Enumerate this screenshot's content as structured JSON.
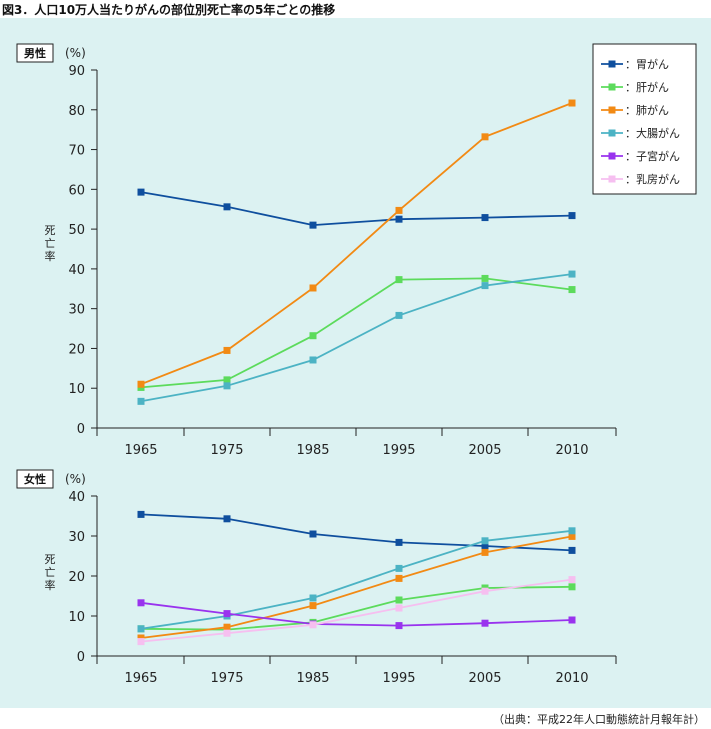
{
  "title": "図3．人口10万人当たりがんの部位別死亡率の5年ごとの推移",
  "source": "（出典：平成22年人口動態統計月報年計）",
  "legend": [
    {
      "name": "胃がん",
      "label": "：胃がん",
      "color": "#0f4f9e"
    },
    {
      "name": "肝がん",
      "label": "：肝がん",
      "color": "#5cdb5c"
    },
    {
      "name": "肺がん",
      "label": "：肺がん",
      "color": "#f28a14"
    },
    {
      "name": "大腸がん",
      "label": "：大腸がん",
      "color": "#4cb3c4"
    },
    {
      "name": "子宮がん",
      "label": "：子宮がん",
      "color": "#9933ee"
    },
    {
      "name": "乳房がん",
      "label": "：乳房がん",
      "color": "#f6bff0"
    }
  ],
  "chart_data": [
    {
      "type": "line",
      "panel_label": "男性",
      "unit": "(%)",
      "ylabel": "死亡率",
      "categories": [
        "1965",
        "1975",
        "1985",
        "1995",
        "2005",
        "2010"
      ],
      "ylim": [
        0,
        90
      ],
      "yticks": [
        0,
        10,
        20,
        30,
        40,
        50,
        60,
        70,
        80,
        90
      ],
      "grid": false,
      "legend_position": "top-right",
      "series": [
        {
          "name": "胃がん",
          "color": "#0f4f9e",
          "values": [
            59.3,
            55.6,
            51.0,
            52.5,
            52.9,
            53.4
          ]
        },
        {
          "name": "肝がん",
          "color": "#5cdb5c",
          "values": [
            10.2,
            12.1,
            23.2,
            37.3,
            37.6,
            34.8
          ]
        },
        {
          "name": "肺がん",
          "color": "#f28a14",
          "values": [
            11.0,
            19.5,
            35.2,
            54.7,
            73.2,
            81.7
          ]
        },
        {
          "name": "大腸がん",
          "color": "#4cb3c4",
          "values": [
            6.7,
            10.6,
            17.1,
            28.3,
            35.8,
            38.7
          ]
        }
      ]
    },
    {
      "type": "line",
      "panel_label": "女性",
      "unit": "(%)",
      "ylabel": "死亡率",
      "categories": [
        "1965",
        "1975",
        "1985",
        "1995",
        "2005",
        "2010"
      ],
      "ylim": [
        0,
        40
      ],
      "yticks": [
        0,
        10,
        20,
        30,
        40
      ],
      "grid": false,
      "series": [
        {
          "name": "胃がん",
          "color": "#0f4f9e",
          "values": [
            35.4,
            34.3,
            30.5,
            28.4,
            27.5,
            26.4
          ]
        },
        {
          "name": "肝がん",
          "color": "#5cdb5c",
          "values": [
            6.8,
            6.6,
            8.4,
            14.0,
            17.0,
            17.3
          ]
        },
        {
          "name": "肺がん",
          "color": "#f28a14",
          "values": [
            4.5,
            7.2,
            12.6,
            19.4,
            25.9,
            29.9
          ]
        },
        {
          "name": "大腸がん",
          "color": "#4cb3c4",
          "values": [
            6.8,
            10.0,
            14.5,
            21.9,
            28.8,
            31.3
          ]
        },
        {
          "name": "子宮がん",
          "color": "#9933ee",
          "values": [
            13.3,
            10.6,
            8.0,
            7.6,
            8.2,
            9.0
          ]
        },
        {
          "name": "乳房がん",
          "color": "#f6bff0",
          "values": [
            3.6,
            5.7,
            7.8,
            12.0,
            16.2,
            19.1
          ]
        }
      ]
    }
  ]
}
